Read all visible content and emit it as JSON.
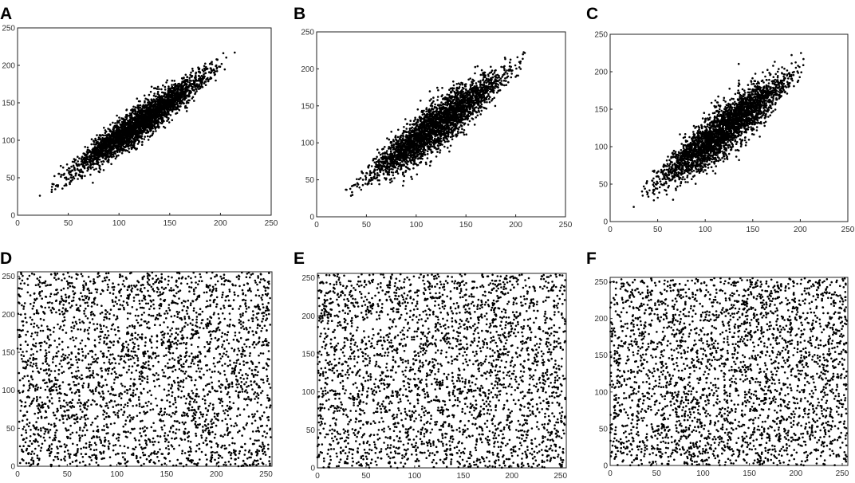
{
  "figure": {
    "panels": [
      "A",
      "B",
      "C",
      "D",
      "E",
      "F"
    ]
  },
  "colors": {
    "marker": "#000000",
    "axes": "#222222",
    "tick_text": "#333333",
    "background": "#ffffff"
  },
  "chart_data": [
    {
      "panel": "A",
      "type": "scatter",
      "title": "",
      "xlabel": "",
      "ylabel": "",
      "xlim": [
        0,
        250
      ],
      "ylim": [
        0,
        250
      ],
      "xticks": [
        0,
        50,
        100,
        150,
        200,
        250
      ],
      "yticks": [
        0,
        50,
        100,
        150,
        200,
        250
      ],
      "grid": false,
      "legend": "none",
      "marker": "dot",
      "distribution": "strongly positively correlated",
      "x_range_of_points": [
        15,
        225
      ],
      "y_range_of_points": [
        15,
        228
      ],
      "trend": {
        "intercept": 5,
        "slope": 0.98,
        "noise_sd": 12,
        "spread_peak_at_x": 120
      },
      "n_points": 3000
    },
    {
      "panel": "B",
      "type": "scatter",
      "title": "",
      "xlabel": "",
      "ylabel": "",
      "xlim": [
        0,
        250
      ],
      "ylim": [
        0,
        250
      ],
      "xticks": [
        0,
        50,
        100,
        150,
        200,
        250
      ],
      "yticks": [
        0,
        50,
        100,
        150,
        200,
        250
      ],
      "grid": false,
      "legend": "none",
      "marker": "dot",
      "distribution": "positively correlated",
      "x_range_of_points": [
        15,
        225
      ],
      "y_range_of_points": [
        10,
        225
      ],
      "trend": {
        "intercept": 5,
        "slope": 0.98,
        "noise_sd": 16,
        "spread_peak_at_x": 120
      },
      "n_points": 3000
    },
    {
      "panel": "C",
      "type": "scatter",
      "title": "",
      "xlabel": "",
      "ylabel": "",
      "xlim": [
        0,
        250
      ],
      "ylim": [
        0,
        250
      ],
      "xticks": [
        0,
        50,
        100,
        150,
        200,
        250
      ],
      "yticks": [
        0,
        50,
        100,
        150,
        200,
        250
      ],
      "grid": false,
      "legend": "none",
      "marker": "dot",
      "distribution": "positively correlated",
      "x_range_of_points": [
        15,
        225
      ],
      "y_range_of_points": [
        10,
        225
      ],
      "trend": {
        "intercept": 5,
        "slope": 0.98,
        "noise_sd": 17,
        "spread_peak_at_x": 120
      },
      "n_points": 3000
    },
    {
      "panel": "D",
      "type": "scatter",
      "title": "",
      "xlabel": "",
      "ylabel": "",
      "xlim": [
        0,
        256
      ],
      "ylim": [
        0,
        256
      ],
      "xticks": [
        0,
        50,
        100,
        150,
        200,
        250
      ],
      "yticks": [
        0,
        50,
        100,
        150,
        200,
        250
      ],
      "grid": false,
      "legend": "none",
      "marker": "dot",
      "distribution": "uniform, uncorrelated",
      "x_range_of_points": [
        0,
        255
      ],
      "y_range_of_points": [
        0,
        255
      ],
      "n_points": 3000
    },
    {
      "panel": "E",
      "type": "scatter",
      "title": "",
      "xlabel": "",
      "ylabel": "",
      "xlim": [
        0,
        256
      ],
      "ylim": [
        0,
        256
      ],
      "xticks": [
        0,
        50,
        100,
        150,
        200,
        250
      ],
      "yticks": [
        0,
        50,
        100,
        150,
        200,
        250
      ],
      "grid": false,
      "legend": "none",
      "marker": "dot",
      "distribution": "uniform, uncorrelated",
      "x_range_of_points": [
        0,
        255
      ],
      "y_range_of_points": [
        0,
        255
      ],
      "n_points": 3000
    },
    {
      "panel": "F",
      "type": "scatter",
      "title": "",
      "xlabel": "",
      "ylabel": "",
      "xlim": [
        0,
        256
      ],
      "ylim": [
        0,
        256
      ],
      "xticks": [
        0,
        50,
        100,
        150,
        200,
        250
      ],
      "yticks": [
        0,
        50,
        100,
        150,
        200,
        250
      ],
      "grid": false,
      "legend": "none",
      "marker": "dot",
      "distribution": "uniform, uncorrelated",
      "x_range_of_points": [
        0,
        255
      ],
      "y_range_of_points": [
        0,
        255
      ],
      "n_points": 3000
    }
  ]
}
